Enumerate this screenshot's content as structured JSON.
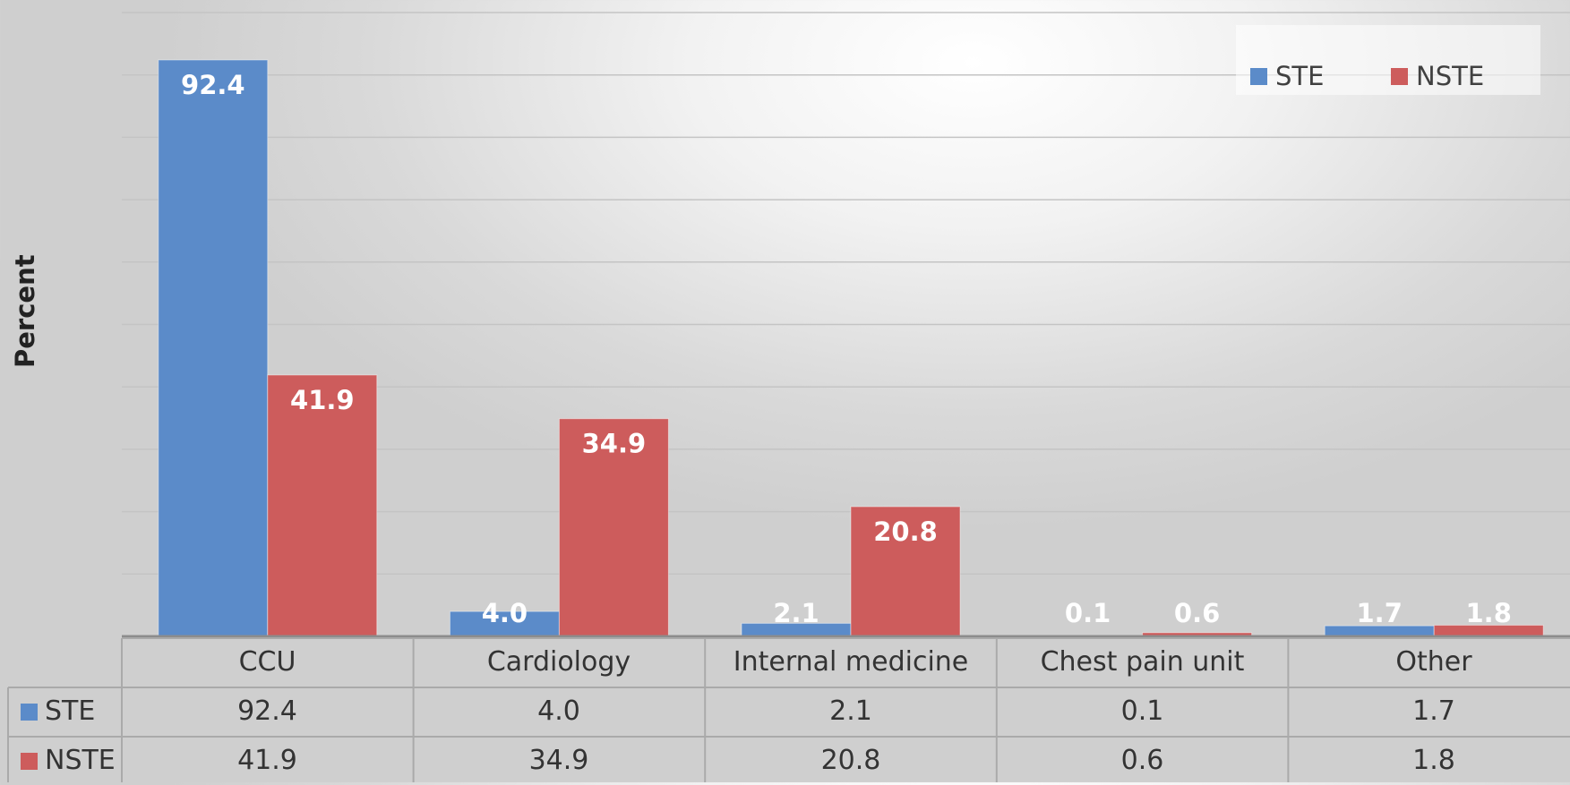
{
  "chart_data": {
    "type": "bar",
    "title": "",
    "xlabel": "",
    "ylabel": "Percent",
    "ylim": [
      0,
      100
    ],
    "grid": true,
    "legend_position": "top-right",
    "data_table": true,
    "categories": [
      "CCU",
      "Cardiology",
      "Internal medicine",
      "Chest pain unit",
      "Other"
    ],
    "series": [
      {
        "name": "STE",
        "color": "#5b8bc9",
        "values": [
          92.4,
          4.0,
          2.1,
          0.1,
          1.7
        ],
        "labels": [
          "92.4",
          "4.0",
          "2.1",
          "0.1",
          "1.7"
        ]
      },
      {
        "name": "NSTE",
        "color": "#cd5c5c",
        "values": [
          41.9,
          34.9,
          20.8,
          0.6,
          1.8
        ],
        "labels": [
          "41.9",
          "34.9",
          "20.8",
          "0.6",
          "1.8"
        ]
      }
    ]
  }
}
